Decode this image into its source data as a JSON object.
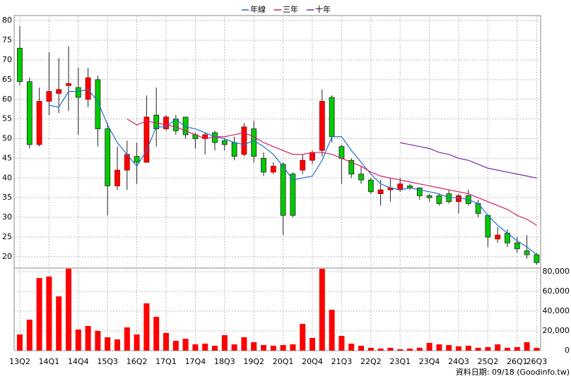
{
  "chart_data": {
    "type": "candlestick",
    "categories": [
      "13Q2",
      null,
      null,
      "14Q1",
      null,
      null,
      "14Q4",
      null,
      null,
      "15Q3",
      null,
      null,
      "16Q2",
      null,
      null,
      "17Q1",
      null,
      null,
      "17Q4",
      null,
      null,
      "18Q3",
      null,
      null,
      "19Q2",
      null,
      null,
      "20Q1",
      null,
      null,
      "20Q4",
      null,
      null,
      "21Q3",
      null,
      null,
      "22Q2",
      null,
      null,
      "23Q1",
      null,
      null,
      "23Q4",
      null,
      null,
      "24Q3",
      null,
      null,
      "25Q2",
      null,
      null,
      "26Q1",
      null,
      "26Q3"
    ],
    "open": [
      73,
      64.5,
      48.5,
      59.5,
      61.5,
      63.5,
      63,
      60,
      65,
      52.5,
      38,
      42,
      45.5,
      44,
      56,
      52.5,
      55,
      55.5,
      51,
      50,
      51.5,
      49.5,
      49,
      46,
      52.5,
      45,
      41.5,
      43.5,
      41,
      42,
      44.5,
      47,
      60.5,
      48,
      44.5,
      41,
      39.5,
      36,
      37,
      37,
      38,
      37.5,
      35.5,
      35.5,
      36,
      34,
      35.5,
      33.5,
      30.5,
      24.5,
      26,
      23.5,
      21.5,
      20.5
    ],
    "high": [
      78.6,
      65.5,
      63,
      72,
      70.5,
      73.5,
      68,
      68,
      66,
      54,
      48,
      49.5,
      49,
      61,
      63,
      56,
      56,
      55.5,
      51.5,
      51.5,
      52,
      50,
      50.5,
      54,
      54.5,
      46.5,
      44,
      44,
      41.5,
      46,
      47,
      62.5,
      61,
      48.5,
      45,
      43,
      40,
      39.5,
      40,
      40,
      38.5,
      37.5,
      36,
      36,
      37,
      36,
      37,
      34.5,
      30.5,
      27.5,
      27,
      25,
      25.5,
      21
    ],
    "low": [
      63.5,
      47.5,
      48,
      56,
      56.5,
      57,
      51,
      58,
      48,
      30.5,
      37,
      37,
      38.5,
      44,
      48,
      52,
      51,
      50,
      47.5,
      46,
      47,
      47,
      44.5,
      45.5,
      44,
      40.5,
      41,
      25.5,
      30,
      41,
      43.5,
      45.5,
      49,
      38.5,
      40,
      38.5,
      36,
      33,
      34,
      36.5,
      37,
      34.5,
      34,
      33,
      33.5,
      31,
      33,
      30,
      22.5,
      23.5,
      22.5,
      21,
      19.5,
      18
    ],
    "close": [
      64.5,
      48.5,
      59.5,
      62,
      62.5,
      64,
      60.5,
      65.5,
      52.5,
      38,
      42,
      46,
      44,
      55.5,
      52.5,
      55.5,
      52,
      51,
      50,
      51,
      49,
      48.5,
      45.5,
      53,
      45.5,
      41.5,
      43,
      30.5,
      30.5,
      44.5,
      46.5,
      59.5,
      50.5,
      45,
      41,
      39.5,
      36.5,
      37,
      37.5,
      38.5,
      37.5,
      35.5,
      35,
      33.5,
      34,
      35.5,
      33.5,
      31,
      25,
      25.5,
      23.5,
      22,
      20.5,
      18.5
    ],
    "up_color": "#ff0000",
    "down_color": "#00cc00",
    "ylim": [
      17.1,
      81.3
    ],
    "yticks": [
      20,
      25,
      30,
      35,
      40,
      45,
      50,
      55,
      60,
      65,
      70,
      75,
      80
    ],
    "grid": true,
    "legend": "top",
    "lines": [
      {
        "name": "年線",
        "color": "#1f6fd0",
        "values": [
          null,
          null,
          null,
          58.5,
          58,
          62,
          62,
          62.5,
          59.5,
          53.5,
          49,
          46,
          43,
          47,
          53,
          53,
          55,
          53,
          52.5,
          51.5,
          50.5,
          50,
          49,
          48.5,
          49.5,
          48,
          46,
          43,
          39.5,
          40,
          40.5,
          44.5,
          50.5,
          50.5,
          47,
          44,
          41,
          38.5,
          37.5,
          37,
          37.5,
          37,
          36.5,
          36,
          35,
          35,
          34.5,
          33.5,
          30.5,
          28,
          26,
          24,
          22.5,
          20.5
        ]
      },
      {
        "name": "三年",
        "color": "#d0206a",
        "values": [
          null,
          null,
          null,
          null,
          null,
          null,
          null,
          null,
          null,
          null,
          null,
          55,
          53.5,
          54.5,
          54,
          53.5,
          53,
          52,
          51,
          50,
          50.5,
          50.5,
          51,
          51.5,
          50.5,
          49,
          48,
          47,
          46,
          46,
          46.5,
          46.5,
          46,
          45,
          44,
          43,
          41.5,
          40.5,
          40,
          39.5,
          39,
          38.5,
          38,
          37.5,
          37,
          36.5,
          36,
          35,
          34,
          33,
          32,
          30.5,
          29.5,
          28
        ]
      },
      {
        "name": "十年",
        "color": "#7a2aa8",
        "values": [
          null,
          null,
          null,
          null,
          null,
          null,
          null,
          null,
          null,
          null,
          null,
          null,
          null,
          null,
          null,
          null,
          null,
          null,
          null,
          null,
          null,
          null,
          null,
          null,
          null,
          null,
          null,
          null,
          null,
          null,
          null,
          null,
          null,
          null,
          null,
          null,
          null,
          null,
          null,
          49,
          48.5,
          48,
          47.5,
          46.5,
          46,
          45,
          44.5,
          43.5,
          42.5,
          42,
          41.5,
          41,
          40.5,
          40
        ]
      }
    ],
    "volume": {
      "color": "#ff0000",
      "values": [
        16400,
        31400,
        73600,
        75000,
        55000,
        83000,
        21400,
        25000,
        20000,
        13600,
        11400,
        23600,
        16400,
        47900,
        34300,
        17900,
        10000,
        12100,
        6400,
        7100,
        5000,
        15700,
        6400,
        13600,
        8600,
        5700,
        5000,
        5700,
        6400,
        27100,
        12900,
        82900,
        41400,
        15000,
        7100,
        5000,
        2900,
        2100,
        2900,
        1400,
        2100,
        2900,
        7900,
        6400,
        5700,
        4300,
        5000,
        2900,
        3600,
        6400,
        2900,
        3600,
        8600,
        2900
      ],
      "ylim": [
        0,
        83600
      ],
      "yticks": [
        0,
        {
          "value": 20000,
          "label": "20,000"
        },
        {
          "value": 40000,
          "label": "40,000"
        },
        {
          "value": 60000,
          "label": "60,000"
        },
        {
          "value": 80000,
          "label": "80,000"
        }
      ]
    },
    "footer": "資料日期: 09/18  (Goodinfo.tw)"
  }
}
